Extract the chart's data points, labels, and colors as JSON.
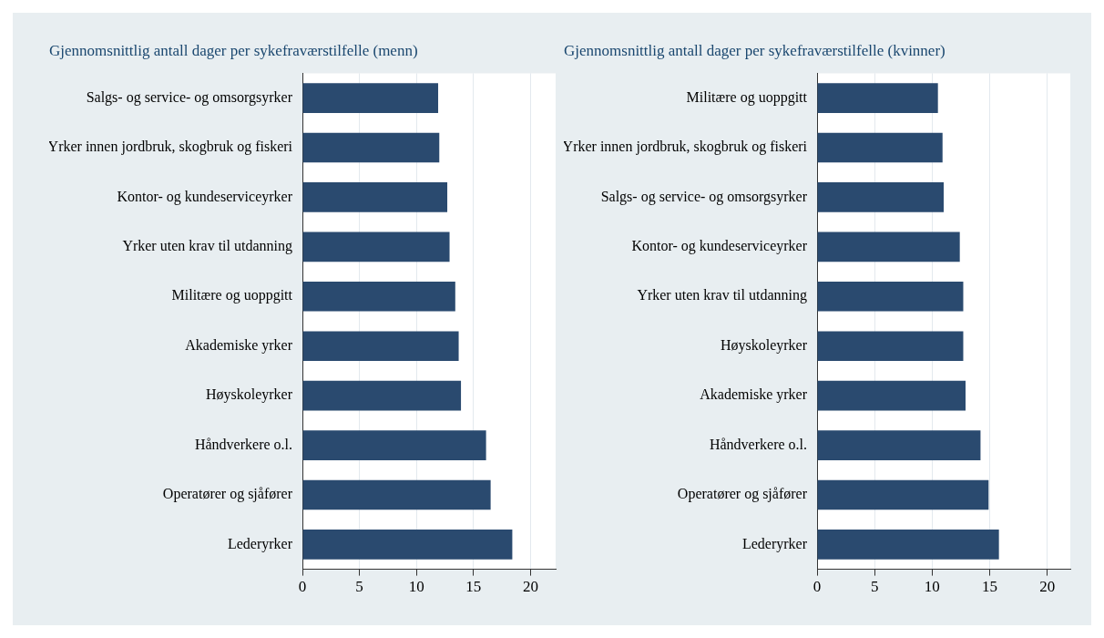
{
  "chart_data": [
    {
      "type": "bar",
      "orientation": "horizontal",
      "title": "Gjennomsnittlig antall dager per sykefraværstilfelle (menn)",
      "categories": [
        "Salgs- og service- og omsorgsyrker",
        "Yrker innen jordbruk, skogbruk og fiskeri",
        "Kontor- og kundeserviceyrker",
        "Yrker uten krav til utdanning",
        "Militære og uoppgitt",
        "Akademiske yrker",
        "Høyskoleyrker",
        "Håndverkere o.l.",
        "Operatører og sjåfører",
        "Lederyrker"
      ],
      "values": [
        11.9,
        12.0,
        12.7,
        12.9,
        13.4,
        13.7,
        13.9,
        16.1,
        16.5,
        18.4
      ],
      "color": "#2a4a6f",
      "xlim": [
        0,
        22.2
      ],
      "xticks": [
        0,
        5,
        10,
        15,
        20
      ],
      "grid": "x",
      "legend": false
    },
    {
      "type": "bar",
      "orientation": "horizontal",
      "title": "Gjennomsnittlig antall dager per sykefraværstilfelle (kvinner)",
      "categories": [
        "Militære og uoppgitt",
        "Yrker innen jordbruk, skogbruk og fiskeri",
        "Salgs- og service- og omsorgsyrker",
        "Kontor- og kundeserviceyrker",
        "Yrker uten krav til utdanning",
        "Høyskoleyrker",
        "Akademiske yrker",
        "Håndverkere o.l.",
        "Operatører og sjåfører",
        "Lederyrker"
      ],
      "values": [
        10.5,
        10.9,
        11.0,
        12.4,
        12.7,
        12.7,
        12.9,
        14.2,
        14.9,
        15.8
      ],
      "color": "#2a4a6f",
      "xlim": [
        0,
        22.0
      ],
      "xticks": [
        0,
        5,
        10,
        15,
        20
      ],
      "grid": "x",
      "legend": false
    }
  ]
}
